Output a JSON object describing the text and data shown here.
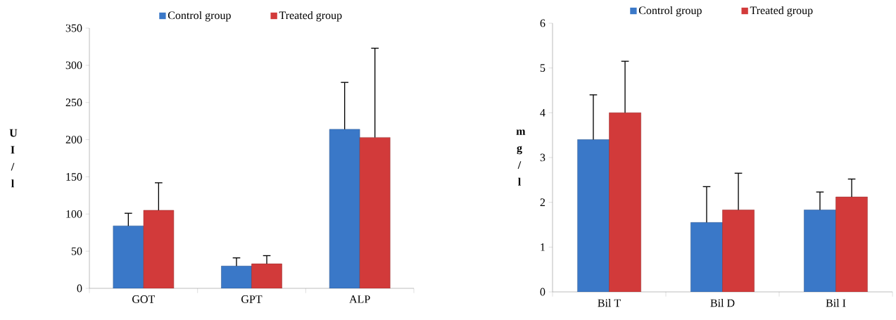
{
  "chart_data": [
    {
      "type": "bar",
      "ylabel": "U I / l",
      "categories": [
        "GOT",
        "GPT",
        "ALP"
      ],
      "ylim": [
        0,
        350
      ],
      "yticks": [
        0,
        50,
        100,
        150,
        200,
        250,
        300,
        350
      ],
      "legend": "top",
      "grid": false,
      "series": [
        {
          "name": "Control group",
          "color": "#3a78c8",
          "values": [
            84,
            30,
            214
          ],
          "errors": [
            [
              84,
              101
            ],
            [
              30,
              41
            ],
            [
              214,
              277
            ]
          ]
        },
        {
          "name": "Treated group",
          "color": "#d23a3a",
          "values": [
            105,
            33,
            203
          ],
          "errors": [
            [
              105,
              142
            ],
            [
              33,
              44
            ],
            [
              203,
              323
            ]
          ]
        }
      ]
    },
    {
      "type": "bar",
      "ylabel": "m g / l",
      "categories": [
        "Bil T",
        "Bil D",
        "Bil I"
      ],
      "ylim": [
        0,
        6
      ],
      "yticks": [
        0,
        1,
        2,
        3,
        4,
        5,
        6
      ],
      "legend": "top",
      "grid": false,
      "series": [
        {
          "name": "Control group",
          "color": "#3a78c8",
          "values": [
            3.4,
            1.55,
            1.83
          ],
          "errors": [
            [
              3.4,
              4.4
            ],
            [
              1.55,
              2.35
            ],
            [
              1.83,
              2.23
            ]
          ]
        },
        {
          "name": "Treated group",
          "color": "#d23a3a",
          "values": [
            4.0,
            1.83,
            2.12
          ],
          "errors": [
            [
              4.0,
              5.15
            ],
            [
              1.83,
              2.65
            ],
            [
              2.12,
              2.52
            ]
          ]
        }
      ]
    }
  ]
}
